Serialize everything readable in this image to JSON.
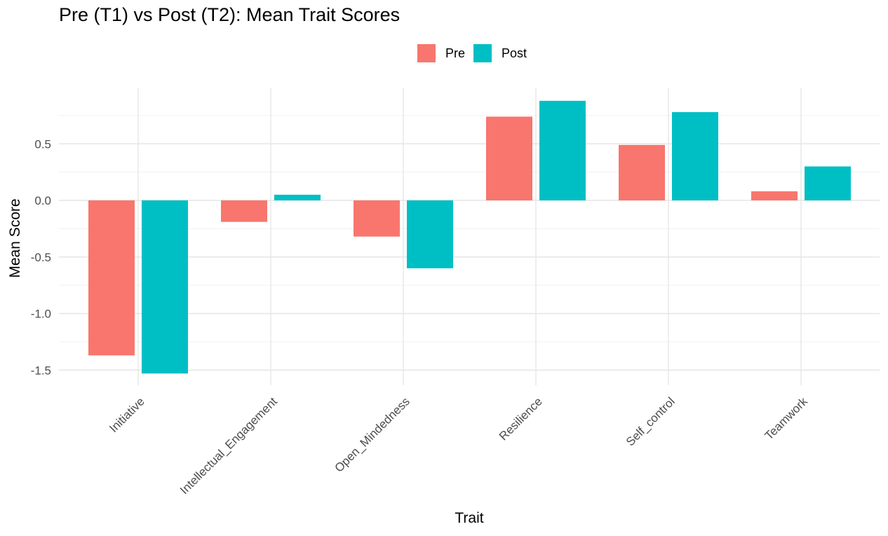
{
  "chart_data": {
    "type": "bar",
    "title": "Pre (T1) vs Post (T2): Mean Trait Scores",
    "xlabel": "Trait",
    "ylabel": "Mean Score",
    "categories": [
      "Initiative",
      "Intellectual_Engagement",
      "Open_Mindedness",
      "Resilience",
      "Self_control",
      "Teamwork"
    ],
    "series": [
      {
        "name": "Pre",
        "color": "#F8766D",
        "values": [
          -1.37,
          -0.19,
          -0.32,
          0.74,
          0.49,
          0.08
        ]
      },
      {
        "name": "Post",
        "color": "#00BFC4",
        "values": [
          -1.53,
          0.05,
          -0.6,
          0.88,
          0.78,
          0.3
        ]
      }
    ],
    "ylim": [
      -1.6,
      0.9
    ],
    "yticks": [
      -1.5,
      -1.0,
      -0.5,
      0.0,
      0.5
    ],
    "ytick_labels": [
      "-1.5",
      "-1.0",
      "-0.5",
      "0.0",
      "0.5"
    ],
    "grid": true,
    "legend_position": "top"
  }
}
